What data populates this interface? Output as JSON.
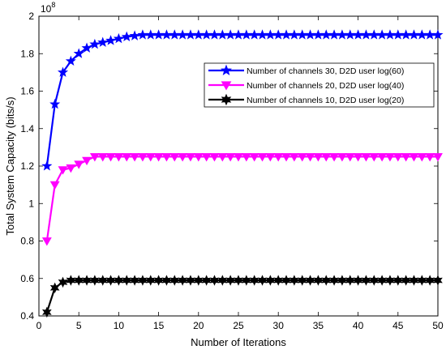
{
  "chart_data": {
    "type": "line",
    "xlabel": "Number of Iterations",
    "ylabel": "Total System Capacity (bits/s)",
    "xlim": [
      0,
      50
    ],
    "ylim": [
      0.4,
      2.0
    ],
    "y_multiplier": "10",
    "y_multiplier_exp": "8",
    "grid": false,
    "legend_position": "top-right",
    "x_ticks": [
      0,
      5,
      10,
      15,
      20,
      25,
      30,
      35,
      40,
      45,
      50
    ],
    "x_tick_labels": [
      "0",
      "5",
      "10",
      "15",
      "20",
      "25",
      "30",
      "35",
      "40",
      "45",
      "50"
    ],
    "y_ticks": [
      0.4,
      0.6,
      0.8,
      1.0,
      1.2,
      1.4,
      1.6,
      1.8,
      2.0
    ],
    "y_tick_labels": [
      "0.4",
      "0.6",
      "0.8",
      "1",
      "1.2",
      "1.4",
      "1.6",
      "1.8",
      "2"
    ],
    "x": [
      1,
      2,
      3,
      4,
      5,
      6,
      7,
      8,
      9,
      10,
      11,
      12,
      13,
      14,
      15,
      16,
      17,
      18,
      19,
      20,
      21,
      22,
      23,
      24,
      25,
      26,
      27,
      28,
      29,
      30,
      31,
      32,
      33,
      34,
      35,
      36,
      37,
      38,
      39,
      40,
      41,
      42,
      43,
      44,
      45,
      46,
      47,
      48,
      49,
      50
    ],
    "series": [
      {
        "name": "Number of channels 30, D2D user log(60)",
        "color": "#0000ff",
        "marker": "star",
        "values": [
          1.2,
          1.53,
          1.7,
          1.76,
          1.8,
          1.83,
          1.85,
          1.86,
          1.87,
          1.88,
          1.89,
          1.895,
          1.9,
          1.9,
          1.9,
          1.9,
          1.9,
          1.9,
          1.9,
          1.9,
          1.9,
          1.9,
          1.9,
          1.9,
          1.9,
          1.9,
          1.9,
          1.9,
          1.9,
          1.9,
          1.9,
          1.9,
          1.9,
          1.9,
          1.9,
          1.9,
          1.9,
          1.9,
          1.9,
          1.9,
          1.9,
          1.9,
          1.9,
          1.9,
          1.9,
          1.9,
          1.9,
          1.9,
          1.9,
          1.9
        ]
      },
      {
        "name": "Number of channels 20, D2D user log(40)",
        "color": "#ff00ff",
        "marker": "triangle-down",
        "values": [
          0.8,
          1.1,
          1.18,
          1.19,
          1.21,
          1.23,
          1.25,
          1.25,
          1.25,
          1.25,
          1.25,
          1.25,
          1.25,
          1.25,
          1.25,
          1.25,
          1.25,
          1.25,
          1.25,
          1.25,
          1.25,
          1.25,
          1.25,
          1.25,
          1.25,
          1.25,
          1.25,
          1.25,
          1.25,
          1.25,
          1.25,
          1.25,
          1.25,
          1.25,
          1.25,
          1.25,
          1.25,
          1.25,
          1.25,
          1.25,
          1.25,
          1.25,
          1.25,
          1.25,
          1.25,
          1.25,
          1.25,
          1.25,
          1.25,
          1.25
        ]
      },
      {
        "name": "Number of channels 10, D2D user log(20)",
        "color": "#000000",
        "marker": "hexagram",
        "values": [
          0.42,
          0.55,
          0.58,
          0.59,
          0.59,
          0.59,
          0.59,
          0.59,
          0.59,
          0.59,
          0.59,
          0.59,
          0.59,
          0.59,
          0.59,
          0.59,
          0.59,
          0.59,
          0.59,
          0.59,
          0.59,
          0.59,
          0.59,
          0.59,
          0.59,
          0.59,
          0.59,
          0.59,
          0.59,
          0.59,
          0.59,
          0.59,
          0.59,
          0.59,
          0.59,
          0.59,
          0.59,
          0.59,
          0.59,
          0.59,
          0.59,
          0.59,
          0.59,
          0.59,
          0.59,
          0.59,
          0.59,
          0.59,
          0.59,
          0.59
        ]
      }
    ]
  }
}
